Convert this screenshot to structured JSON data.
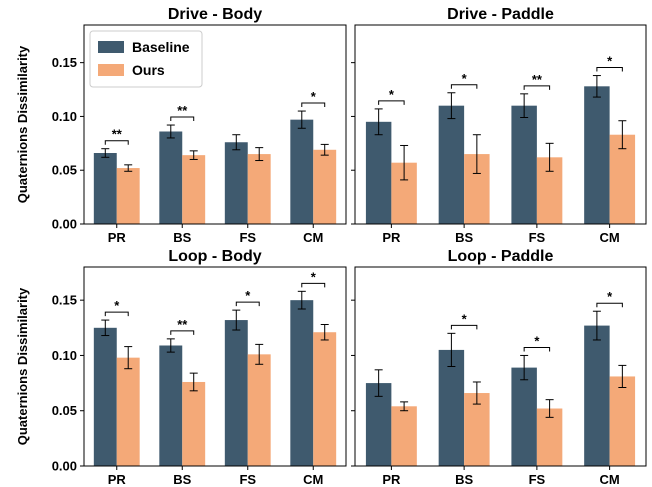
{
  "colors": {
    "baseline": "#3f5a6e",
    "ours": "#f4a978"
  },
  "chart_data": [
    {
      "type": "bar",
      "title": "Drive - Body",
      "ylabel": "Quaternions Dissimilarity",
      "categories": [
        "PR",
        "BS",
        "FS",
        "CM"
      ],
      "ylim": [
        0,
        0.185
      ],
      "yticks": [
        "0.00",
        "0.05",
        "0.10",
        "0.15"
      ],
      "series": [
        {
          "name": "Baseline",
          "values": [
            0.066,
            0.086,
            0.076,
            0.097
          ],
          "errors": [
            0.004,
            0.006,
            0.007,
            0.008
          ]
        },
        {
          "name": "Ours",
          "values": [
            0.052,
            0.064,
            0.065,
            0.069
          ],
          "errors": [
            0.003,
            0.004,
            0.006,
            0.005
          ]
        }
      ],
      "significance": [
        "**",
        "**",
        "",
        "*"
      ],
      "legend": "upper-left"
    },
    {
      "type": "bar",
      "title": "Drive - Paddle",
      "ylabel": "",
      "categories": [
        "PR",
        "BS",
        "FS",
        "CM"
      ],
      "ylim": [
        0,
        0.185
      ],
      "yticks": [],
      "series": [
        {
          "name": "Baseline",
          "values": [
            0.095,
            0.11,
            0.11,
            0.128
          ],
          "errors": [
            0.012,
            0.012,
            0.011,
            0.01
          ]
        },
        {
          "name": "Ours",
          "values": [
            0.057,
            0.065,
            0.062,
            0.083
          ],
          "errors": [
            0.016,
            0.018,
            0.013,
            0.013
          ]
        }
      ],
      "significance": [
        "*",
        "*",
        "**",
        "*"
      ]
    },
    {
      "type": "bar",
      "title": "Loop - Body",
      "ylabel": "Quaternions Dissimilarity",
      "categories": [
        "PR",
        "BS",
        "FS",
        "CM"
      ],
      "ylim": [
        0,
        0.18
      ],
      "yticks": [
        "0.00",
        "0.05",
        "0.10",
        "0.15"
      ],
      "series": [
        {
          "name": "Baseline",
          "values": [
            0.125,
            0.109,
            0.132,
            0.15
          ],
          "errors": [
            0.007,
            0.006,
            0.009,
            0.008
          ]
        },
        {
          "name": "Ours",
          "values": [
            0.098,
            0.076,
            0.101,
            0.121
          ],
          "errors": [
            0.01,
            0.008,
            0.009,
            0.007
          ]
        }
      ],
      "significance": [
        "*",
        "**",
        "*",
        "*"
      ]
    },
    {
      "type": "bar",
      "title": "Loop - Paddle",
      "ylabel": "",
      "categories": [
        "PR",
        "BS",
        "FS",
        "CM"
      ],
      "ylim": [
        0,
        0.18
      ],
      "yticks": [],
      "series": [
        {
          "name": "Baseline",
          "values": [
            0.075,
            0.105,
            0.089,
            0.127
          ],
          "errors": [
            0.012,
            0.015,
            0.011,
            0.013
          ]
        },
        {
          "name": "Ours",
          "values": [
            0.054,
            0.066,
            0.052,
            0.081
          ],
          "errors": [
            0.004,
            0.01,
            0.008,
            0.01
          ]
        }
      ],
      "significance": [
        "",
        "*",
        "*",
        "*"
      ]
    }
  ]
}
